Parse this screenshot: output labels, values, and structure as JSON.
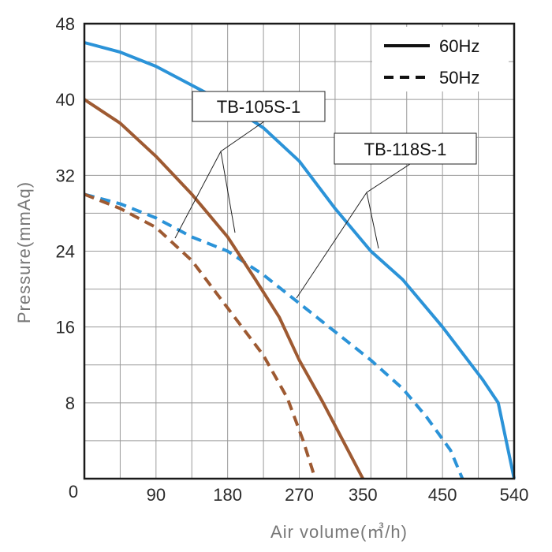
{
  "chart_data": {
    "type": "line",
    "xlabel": "Air volume(㎥/h)",
    "ylabel": "Pressure(mmAq)",
    "xlim": [
      0,
      540
    ],
    "ylim": [
      0,
      48
    ],
    "xticks": [
      90,
      180,
      270,
      350,
      450,
      540
    ],
    "yticks": [
      0,
      8,
      16,
      24,
      32,
      40,
      48
    ],
    "origin_label": "0",
    "grid": true,
    "legend": {
      "placement": "top-right",
      "entries": [
        {
          "label": "60Hz",
          "style": "solid"
        },
        {
          "label": "50Hz",
          "style": "dashed"
        }
      ]
    },
    "annotations": [
      {
        "text": "TB-105S-1",
        "series": [
          "TB-105S-1 60Hz",
          "TB-105S-1 50Hz"
        ]
      },
      {
        "text": "TB-118S-1",
        "series": [
          "TB-118S-1 60Hz",
          "TB-118S-1 50Hz"
        ]
      }
    ],
    "series": [
      {
        "name": "TB-118S-1 60Hz",
        "model": "TB-118S-1",
        "frequency": "60Hz",
        "color": "#2b93d8",
        "style": "solid",
        "x": [
          0,
          45,
          90,
          135,
          180,
          225,
          270,
          315,
          360,
          400,
          450,
          500,
          520,
          540
        ],
        "y": [
          46,
          45,
          43.5,
          41.5,
          39.5,
          37,
          33.5,
          28.5,
          24,
          21,
          16,
          10.5,
          8,
          0
        ]
      },
      {
        "name": "TB-118S-1 50Hz",
        "model": "TB-118S-1",
        "frequency": "50Hz",
        "color": "#2b93d8",
        "style": "dashed",
        "x": [
          0,
          45,
          90,
          135,
          180,
          225,
          270,
          315,
          360,
          400,
          430,
          460,
          475
        ],
        "y": [
          30,
          29,
          27.5,
          25.5,
          24,
          21.5,
          18.5,
          15.5,
          12.5,
          9.5,
          6.5,
          3,
          0
        ]
      },
      {
        "name": "TB-105S-1 60Hz",
        "model": "TB-105S-1",
        "frequency": "60Hz",
        "color": "#9e5a32",
        "style": "solid",
        "x": [
          0,
          45,
          90,
          135,
          180,
          215,
          245,
          270,
          300,
          325,
          350
        ],
        "y": [
          40,
          37.5,
          34,
          30,
          25.5,
          21,
          17,
          12.5,
          8,
          4,
          0
        ]
      },
      {
        "name": "TB-105S-1 50Hz",
        "model": "TB-105S-1",
        "frequency": "50Hz",
        "color": "#9e5a32",
        "style": "dashed",
        "x": [
          0,
          45,
          90,
          135,
          180,
          225,
          255,
          275,
          290
        ],
        "y": [
          30,
          28.5,
          26.5,
          23,
          18,
          13,
          8.5,
          4,
          0
        ]
      }
    ]
  }
}
